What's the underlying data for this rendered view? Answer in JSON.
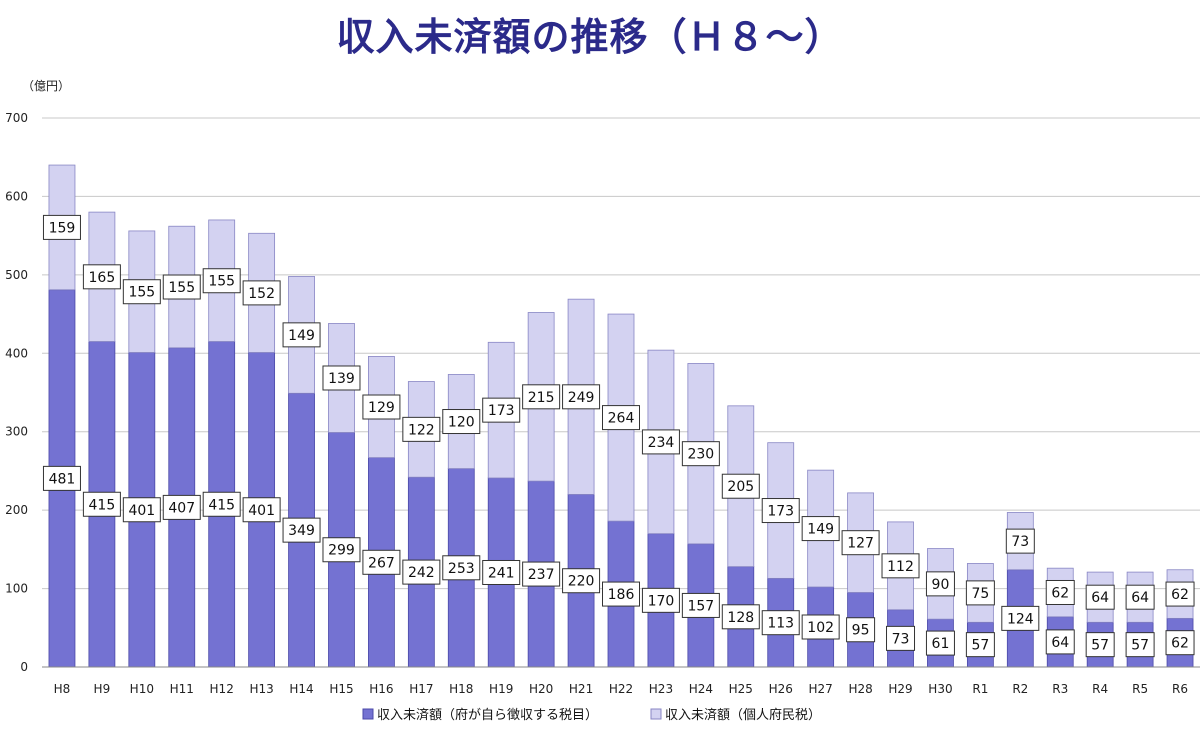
{
  "chart_data": {
    "type": "bar",
    "stacked": true,
    "title": "収入未済額の推移（Ｈ８～）",
    "ylabel": "（億円）",
    "xlabel": "",
    "ylim": [
      0,
      700
    ],
    "yticks": [
      0,
      100,
      200,
      300,
      400,
      500,
      600,
      700
    ],
    "grid": true,
    "legend": "bottom",
    "categories": [
      "H8",
      "H9",
      "H10",
      "H11",
      "H12",
      "H13",
      "H14",
      "H15",
      "H16",
      "H17",
      "H18",
      "H19",
      "H20",
      "H21",
      "H22",
      "H23",
      "H24",
      "H25",
      "H26",
      "H27",
      "H28",
      "H29",
      "H30",
      "R1",
      "R2",
      "R3",
      "R4",
      "R5",
      "R6"
    ],
    "series": [
      {
        "name": "収入未済額（府が自ら徴収する税目）",
        "color": "#7472d2",
        "values": [
          481,
          415,
          401,
          407,
          415,
          401,
          349,
          299,
          267,
          242,
          253,
          241,
          237,
          220,
          186,
          170,
          157,
          128,
          113,
          102,
          95,
          73,
          61,
          57,
          124,
          64,
          57,
          57,
          62
        ]
      },
      {
        "name": "収入未済額（個人府民税）",
        "color": "#d3d2f1",
        "values": [
          159,
          165,
          155,
          155,
          155,
          152,
          149,
          139,
          129,
          122,
          120,
          173,
          215,
          249,
          264,
          234,
          230,
          205,
          173,
          149,
          127,
          112,
          90,
          75,
          73,
          62,
          64,
          64,
          62
        ]
      }
    ]
  }
}
